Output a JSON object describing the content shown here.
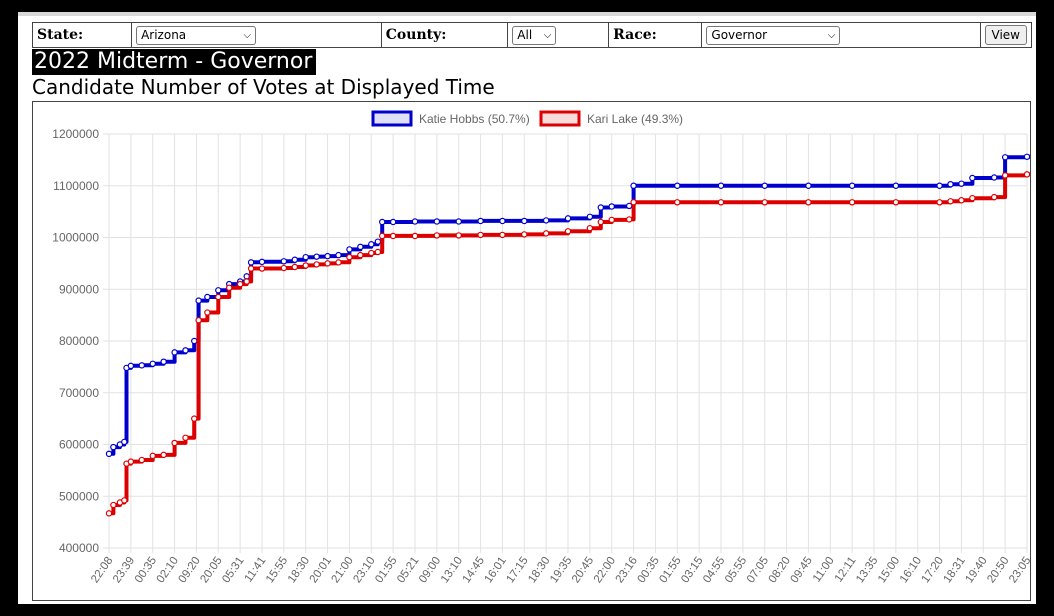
{
  "filters": {
    "state_label": "State:",
    "state_value": "Arizona",
    "county_label": "County:",
    "county_value": "All",
    "race_label": "Race:",
    "race_value": "Governor",
    "view_label": "View"
  },
  "page": {
    "title": "2022 Midterm - Governor",
    "subtitle": "Candidate Number of Votes at Displayed Time"
  },
  "colors": {
    "hobbs": "#0000cc",
    "lake": "#dd0000"
  },
  "chart_data": {
    "type": "line",
    "title": "",
    "xlabel": "",
    "ylabel": "",
    "ylim": [
      400000,
      1200000
    ],
    "yticks": [
      400000,
      500000,
      600000,
      700000,
      800000,
      900000,
      1000000,
      1100000,
      1200000
    ],
    "grid": true,
    "legend": "top-center",
    "x_labels": [
      "22:08",
      "23:39",
      "00:35",
      "02:10",
      "09:20",
      "20:05",
      "05:31",
      "11:41",
      "15:55",
      "18:30",
      "20:01",
      "21:00",
      "23:10",
      "01:55",
      "05:21",
      "09:00",
      "13:10",
      "14:45",
      "16:01",
      "17:15",
      "18:30",
      "19:35",
      "20:45",
      "22:00",
      "23:16",
      "00:35",
      "01:55",
      "03:15",
      "04:55",
      "05:55",
      "07:05",
      "08:20",
      "09:45",
      "11:00",
      "12:11",
      "13:35",
      "15:00",
      "16:10",
      "17:20",
      "18:31",
      "19:40",
      "20:50",
      "23:05"
    ],
    "series": [
      {
        "name": "Katie Hobbs (50.7%)",
        "color": "#0000cc",
        "points": [
          [
            0,
            582000
          ],
          [
            0.2,
            595000
          ],
          [
            0.5,
            600000
          ],
          [
            0.7,
            605000
          ],
          [
            0.8,
            748000
          ],
          [
            1,
            752000
          ],
          [
            1.5,
            753000
          ],
          [
            2,
            756000
          ],
          [
            2.5,
            760000
          ],
          [
            3,
            778000
          ],
          [
            3.5,
            782000
          ],
          [
            3.9,
            800000
          ],
          [
            4.1,
            878000
          ],
          [
            4.5,
            885000
          ],
          [
            5,
            898000
          ],
          [
            5.5,
            910000
          ],
          [
            6,
            915000
          ],
          [
            6.3,
            925000
          ],
          [
            6.5,
            952000
          ],
          [
            7,
            953000
          ],
          [
            8,
            954000
          ],
          [
            8.5,
            957000
          ],
          [
            9,
            962000
          ],
          [
            9.5,
            963000
          ],
          [
            10,
            964000
          ],
          [
            10.5,
            966000
          ],
          [
            11,
            977000
          ],
          [
            11.5,
            982000
          ],
          [
            12,
            987000
          ],
          [
            12.3,
            992000
          ],
          [
            12.5,
            1030000
          ],
          [
            13,
            1030000
          ],
          [
            14,
            1031000
          ],
          [
            15,
            1031000
          ],
          [
            16,
            1031000
          ],
          [
            17,
            1032000
          ],
          [
            18,
            1032000
          ],
          [
            19,
            1032000
          ],
          [
            20,
            1033000
          ],
          [
            21,
            1037000
          ],
          [
            22,
            1040000
          ],
          [
            22.5,
            1058000
          ],
          [
            23,
            1060000
          ],
          [
            23.8,
            1061000
          ],
          [
            24,
            1100000
          ],
          [
            26,
            1100000
          ],
          [
            28,
            1100000
          ],
          [
            30,
            1100000
          ],
          [
            32,
            1100000
          ],
          [
            34,
            1100000
          ],
          [
            36,
            1100000
          ],
          [
            38,
            1100000
          ],
          [
            38.5,
            1103000
          ],
          [
            39,
            1104000
          ],
          [
            39.5,
            1115000
          ],
          [
            40.5,
            1116000
          ],
          [
            41,
            1155000
          ],
          [
            42,
            1156000
          ],
          [
            43,
            1156000
          ]
        ]
      },
      {
        "name": "Kari Lake (49.3%)",
        "color": "#dd0000",
        "points": [
          [
            0,
            467000
          ],
          [
            0.2,
            483000
          ],
          [
            0.5,
            488000
          ],
          [
            0.7,
            492000
          ],
          [
            0.8,
            563000
          ],
          [
            1,
            567000
          ],
          [
            1.5,
            570000
          ],
          [
            2,
            578000
          ],
          [
            2.5,
            580000
          ],
          [
            3,
            603000
          ],
          [
            3.5,
            613000
          ],
          [
            3.9,
            650000
          ],
          [
            4.1,
            840000
          ],
          [
            4.5,
            855000
          ],
          [
            5,
            885000
          ],
          [
            5.5,
            903000
          ],
          [
            6,
            910000
          ],
          [
            6.3,
            915000
          ],
          [
            6.5,
            940000
          ],
          [
            7,
            940000
          ],
          [
            8,
            941000
          ],
          [
            8.5,
            943000
          ],
          [
            9,
            946000
          ],
          [
            9.5,
            948000
          ],
          [
            10,
            950000
          ],
          [
            10.5,
            952000
          ],
          [
            11,
            962000
          ],
          [
            11.5,
            966000
          ],
          [
            12,
            970000
          ],
          [
            12.3,
            972000
          ],
          [
            12.5,
            1003000
          ],
          [
            13,
            1003000
          ],
          [
            14,
            1003000
          ],
          [
            15,
            1004000
          ],
          [
            16,
            1004000
          ],
          [
            17,
            1005000
          ],
          [
            18,
            1005000
          ],
          [
            19,
            1006000
          ],
          [
            20,
            1008000
          ],
          [
            21,
            1012000
          ],
          [
            22,
            1018000
          ],
          [
            22.5,
            1030000
          ],
          [
            23,
            1034000
          ],
          [
            23.8,
            1035000
          ],
          [
            24,
            1068000
          ],
          [
            26,
            1068000
          ],
          [
            28,
            1068000
          ],
          [
            30,
            1068000
          ],
          [
            32,
            1068000
          ],
          [
            34,
            1068000
          ],
          [
            36,
            1068000
          ],
          [
            38,
            1068000
          ],
          [
            38.5,
            1070000
          ],
          [
            39,
            1072000
          ],
          [
            39.5,
            1076000
          ],
          [
            40.5,
            1078000
          ],
          [
            41,
            1120000
          ],
          [
            42,
            1122000
          ],
          [
            43,
            1122000
          ]
        ]
      }
    ]
  }
}
